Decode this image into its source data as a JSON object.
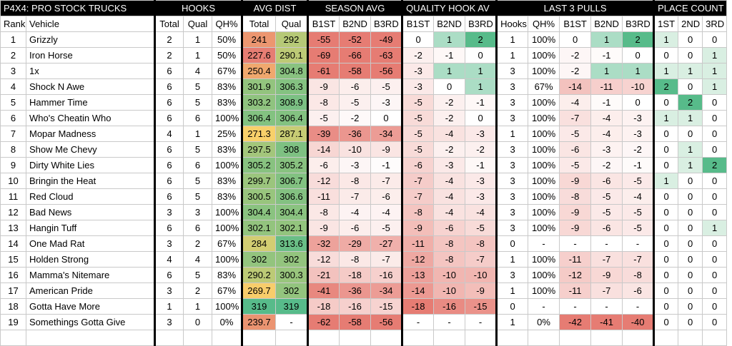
{
  "sheet_title": "P4X4: PRO STOCK TRUCKS",
  "groups": {
    "hooks": "HOOKS",
    "avg_dist": "AVG DIST",
    "season_avg": "SEASON AVG",
    "quality_hook_av": "QUALITY HOOK AV",
    "last_3_pulls": "LAST 3 PULLS",
    "place_count": "PLACE COUNT"
  },
  "headers": [
    "Rank",
    "Vehicle",
    "Total",
    "Qual",
    "QH%",
    "Total",
    "Qual",
    "B1ST",
    "B2ND",
    "B3RD",
    "B1ST",
    "B2ND",
    "B3RD",
    "Hooks",
    "QH%",
    "B1ST",
    "B2ND",
    "B3RD",
    "1ST",
    "2ND",
    "3RD"
  ],
  "rows": [
    [
      "1",
      "Grizzly",
      "2",
      "1",
      "50%",
      "241",
      "292",
      "-55",
      "-52",
      "-49",
      "0",
      "1",
      "2",
      "1",
      "100%",
      "0",
      "1",
      "2",
      "1",
      "0",
      "0"
    ],
    [
      "2",
      "Iron Horse",
      "2",
      "1",
      "50%",
      "227.6",
      "290.1",
      "-69",
      "-66",
      "-63",
      "-2",
      "-1",
      "0",
      "1",
      "100%",
      "-2",
      "-1",
      "0",
      "0",
      "0",
      "1"
    ],
    [
      "3",
      "1x",
      "6",
      "4",
      "67%",
      "250.4",
      "304.8",
      "-61",
      "-58",
      "-56",
      "-3",
      "1",
      "1",
      "3",
      "100%",
      "-2",
      "1",
      "1",
      "1",
      "1",
      "1"
    ],
    [
      "4",
      "Shock N Awe",
      "6",
      "5",
      "83%",
      "301.9",
      "306.3",
      "-9",
      "-6",
      "-5",
      "-3",
      "0",
      "1",
      "3",
      "67%",
      "-14",
      "-11",
      "-10",
      "2",
      "0",
      "1"
    ],
    [
      "5",
      "Hammer Time",
      "6",
      "5",
      "83%",
      "303.2",
      "308.9",
      "-8",
      "-5",
      "-3",
      "-5",
      "-2",
      "-1",
      "3",
      "100%",
      "-4",
      "-1",
      "0",
      "0",
      "2",
      "0"
    ],
    [
      "6",
      "Who's Cheatin Who",
      "6",
      "6",
      "100%",
      "306.4",
      "306.4",
      "-5",
      "-2",
      "0",
      "-5",
      "-2",
      "0",
      "3",
      "100%",
      "-7",
      "-4",
      "-3",
      "1",
      "1",
      "0"
    ],
    [
      "7",
      "Mopar Madness",
      "4",
      "1",
      "25%",
      "271.3",
      "287.1",
      "-39",
      "-36",
      "-34",
      "-5",
      "-4",
      "-3",
      "1",
      "100%",
      "-5",
      "-4",
      "-3",
      "0",
      "0",
      "0"
    ],
    [
      "8",
      "Show Me Chevy",
      "6",
      "5",
      "83%",
      "297.5",
      "308",
      "-14",
      "-10",
      "-9",
      "-5",
      "-2",
      "-2",
      "3",
      "100%",
      "-6",
      "-3",
      "-2",
      "0",
      "1",
      "0"
    ],
    [
      "9",
      "Dirty White Lies",
      "6",
      "6",
      "100%",
      "305.2",
      "305.2",
      "-6",
      "-3",
      "-1",
      "-6",
      "-3",
      "-1",
      "3",
      "100%",
      "-5",
      "-2",
      "-1",
      "0",
      "1",
      "2"
    ],
    [
      "10",
      "Bringin the Heat",
      "6",
      "5",
      "83%",
      "299.7",
      "306.7",
      "-12",
      "-8",
      "-7",
      "-7",
      "-4",
      "-3",
      "3",
      "100%",
      "-9",
      "-6",
      "-5",
      "1",
      "0",
      "0"
    ],
    [
      "11",
      "Red Cloud",
      "6",
      "5",
      "83%",
      "300.5",
      "306.6",
      "-11",
      "-7",
      "-6",
      "-7",
      "-4",
      "-3",
      "3",
      "100%",
      "-8",
      "-5",
      "-4",
      "0",
      "0",
      "0"
    ],
    [
      "12",
      "Bad News",
      "3",
      "3",
      "100%",
      "304.4",
      "304.4",
      "-8",
      "-4",
      "-4",
      "-8",
      "-4",
      "-4",
      "3",
      "100%",
      "-9",
      "-5",
      "-5",
      "0",
      "0",
      "0"
    ],
    [
      "13",
      "Hangin Tuff",
      "6",
      "6",
      "100%",
      "302.1",
      "302.1",
      "-9",
      "-6",
      "-5",
      "-9",
      "-6",
      "-5",
      "3",
      "100%",
      "-9",
      "-6",
      "-5",
      "0",
      "0",
      "1"
    ],
    [
      "14",
      "One Mad Rat",
      "3",
      "2",
      "67%",
      "284",
      "313.6",
      "-32",
      "-29",
      "-27",
      "-11",
      "-8",
      "-8",
      "0",
      "-",
      "-",
      "-",
      "-",
      "0",
      "0",
      "0"
    ],
    [
      "15",
      "Holden Strong",
      "4",
      "4",
      "100%",
      "302",
      "302",
      "-12",
      "-8",
      "-7",
      "-12",
      "-8",
      "-7",
      "1",
      "100%",
      "-11",
      "-7",
      "-7",
      "0",
      "0",
      "0"
    ],
    [
      "16",
      "Mamma's Nitemare",
      "6",
      "5",
      "83%",
      "290.2",
      "300.3",
      "-21",
      "-18",
      "-16",
      "-13",
      "-10",
      "-10",
      "3",
      "100%",
      "-12",
      "-9",
      "-8",
      "0",
      "0",
      "0"
    ],
    [
      "17",
      "American Pride",
      "3",
      "2",
      "67%",
      "269.7",
      "302",
      "-41",
      "-36",
      "-34",
      "-14",
      "-10",
      "-9",
      "1",
      "100%",
      "-11",
      "-7",
      "-6",
      "0",
      "0",
      "0"
    ],
    [
      "18",
      "Gotta Have More",
      "1",
      "1",
      "100%",
      "319",
      "319",
      "-18",
      "-16",
      "-15",
      "-18",
      "-16",
      "-15",
      "0",
      "-",
      "-",
      "-",
      "-",
      "0",
      "0",
      "0"
    ],
    [
      "19",
      "Somethings Gotta Give",
      "3",
      "0",
      "0%",
      "239.7",
      "-",
      "-62",
      "-58",
      "-56",
      "-",
      "-",
      "-",
      "1",
      "0%",
      "-42",
      "-41",
      "-40",
      "0",
      "0",
      "0"
    ]
  ],
  "colors": {
    "group_bg": "#000000",
    "green_strong": "#57bb8a",
    "green_light": "#d9efe2",
    "red_strong": "#e67c73",
    "yellow": "#f9d36a",
    "orange": "#f4a86f"
  }
}
